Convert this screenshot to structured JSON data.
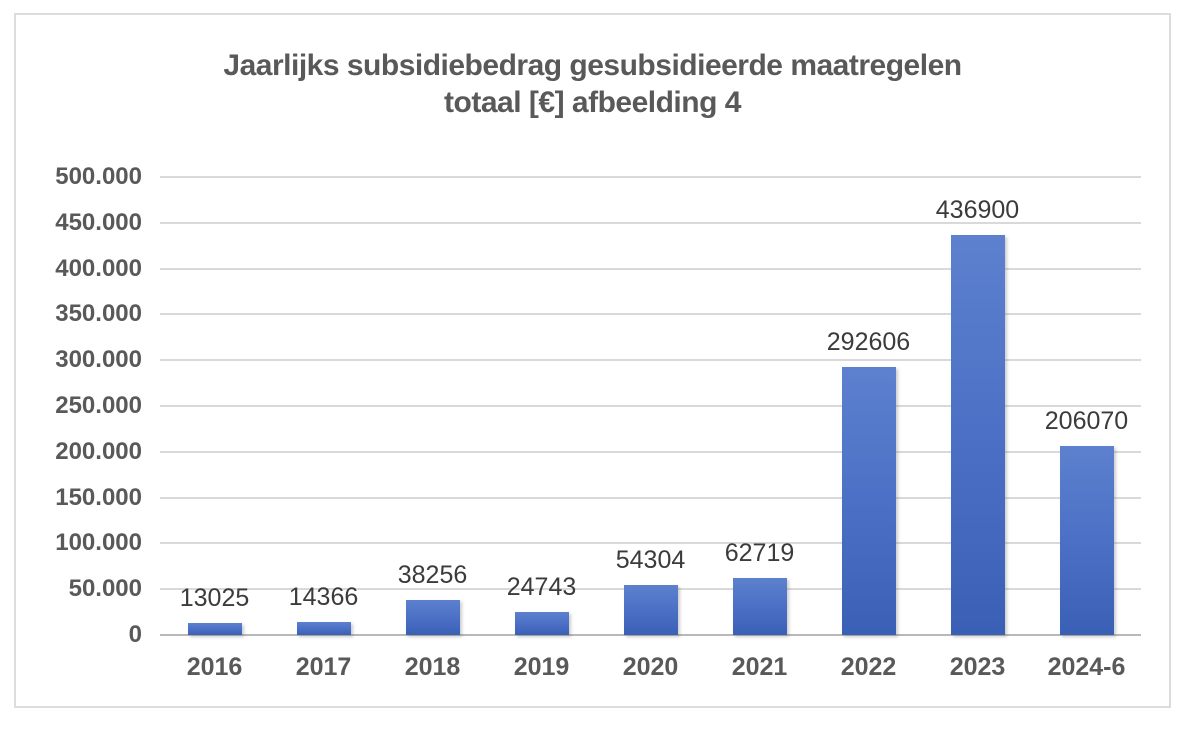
{
  "chart_data": {
    "type": "bar",
    "title": "Jaarlijks subsidiebedrag gesubsidieerde maatregelen totaal [€] afbeelding 4",
    "title_lines": [
      "Jaarlijks subsidiebedrag gesubsidieerde maatregelen",
      "totaal [€] afbeelding 4"
    ],
    "categories": [
      "2016",
      "2017",
      "2018",
      "2019",
      "2020",
      "2021",
      "2022",
      "2023",
      "2024-6"
    ],
    "values": [
      13025,
      14366,
      38256,
      24743,
      54304,
      62719,
      292606,
      436900,
      206070
    ],
    "data_labels": [
      "13025",
      "14366",
      "38256",
      "24743",
      "54304",
      "62719",
      "292606",
      "436900",
      "206070"
    ],
    "xlabel": "",
    "ylabel": "",
    "ylim": [
      0,
      500000
    ],
    "ytick_step": 50000,
    "ytick_labels": [
      "0",
      "50.000",
      "100.000",
      "150.000",
      "200.000",
      "250.000",
      "300.000",
      "350.000",
      "400.000",
      "450.000",
      "500.000"
    ],
    "grid": true,
    "legend": "none",
    "colors": {
      "bar_top": "#5d81ce",
      "bar_mid": "#4a6ec4",
      "bar_bottom": "#3a60b6",
      "gridline": "#d9d9d9",
      "axis_line": "#b8b8b8",
      "title_text": "#595959",
      "tick_text": "#595959",
      "data_label_text": "#3b3b3b",
      "background": "#ffffff",
      "frame_border": "#dcdcdc"
    }
  }
}
